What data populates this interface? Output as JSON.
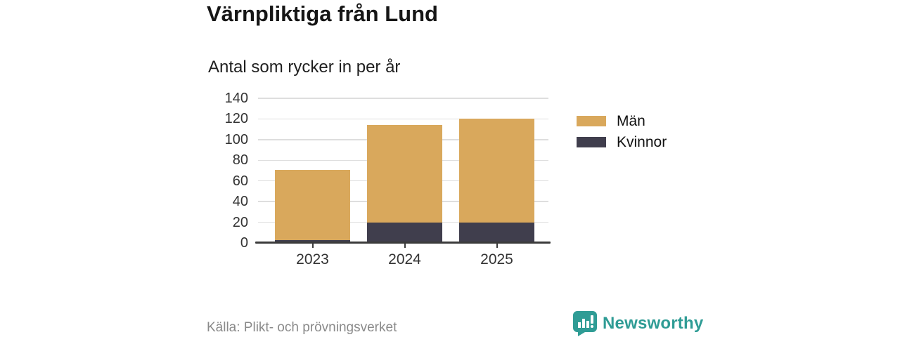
{
  "header": {
    "title": "Värnpliktiga från Lund",
    "subtitle": "Antal som rycker in per år"
  },
  "chart_data": {
    "type": "bar",
    "stacked": true,
    "categories": [
      "2023",
      "2024",
      "2025"
    ],
    "series": [
      {
        "name": "Män",
        "color": "#d9a85c",
        "values": [
          68,
          94,
          100
        ]
      },
      {
        "name": "Kvinnor",
        "color": "#403e4d",
        "values": [
          3,
          20,
          20
        ]
      }
    ],
    "totals": [
      71,
      114,
      120
    ],
    "title": "Värnpliktiga från Lund",
    "subtitle": "Antal som rycker in per år",
    "xlabel": "",
    "ylabel": "",
    "ylim": [
      0,
      140
    ],
    "yticks": [
      0,
      20,
      40,
      60,
      80,
      100,
      120,
      140
    ],
    "grid": true,
    "legend_position": "right"
  },
  "footer": {
    "source": "Källa: Plikt- och prövningsverket",
    "brand": "Newsworthy"
  },
  "colors": {
    "men": "#d9a85c",
    "women": "#403e4d",
    "brand_teal": "#2f9c95",
    "grid": "#dedede",
    "axis": "#3b3b3b",
    "muted_text": "#8a8a8a"
  }
}
